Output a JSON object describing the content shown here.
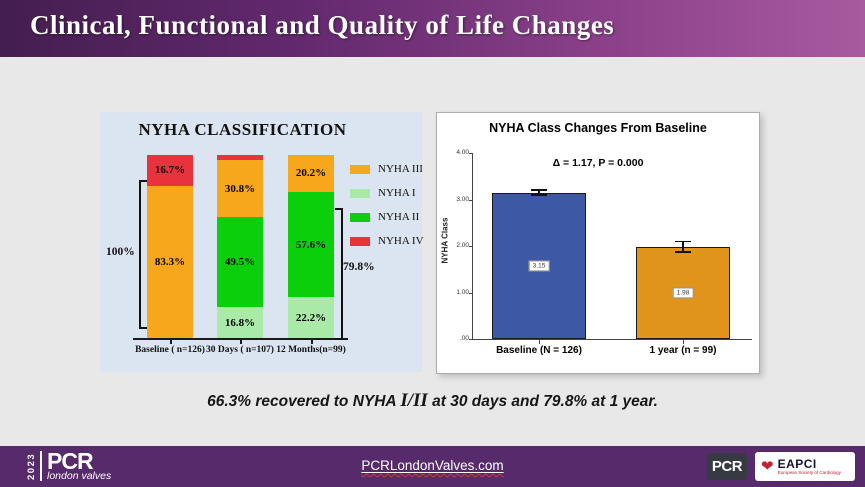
{
  "header": {
    "title": "Clinical, Functional and Quality of Life Changes"
  },
  "chart_data": [
    {
      "type": "bar",
      "variant": "stacked-percent",
      "title": "NYHA CLASSIFICATION",
      "categories": [
        "Baseline ( n=126)",
        "30 Days ( n=107)",
        "12 Months(n=99)"
      ],
      "series": [
        {
          "name": "NYHA I",
          "color": "#a9eaa9",
          "values": [
            0,
            16.8,
            22.2
          ]
        },
        {
          "name": "NYHA II",
          "color": "#0bcf0b",
          "values": [
            0,
            49.5,
            57.6
          ]
        },
        {
          "name": "NYHA III",
          "color": "#f7a71c",
          "values": [
            83.3,
            30.8,
            20.2
          ]
        },
        {
          "name": "NYHA IV",
          "color": "#e8333f",
          "values": [
            16.7,
            2.9,
            0
          ]
        }
      ],
      "legend": [
        {
          "label": "NYHA III",
          "color": "#f7a71c"
        },
        {
          "label": "NYHA I",
          "color": "#a9eaa9"
        },
        {
          "label": "NYHA II",
          "color": "#0bcf0b"
        },
        {
          "label": "NYHA IV",
          "color": "#e8333f"
        }
      ],
      "brackets": {
        "left": "100%",
        "right": "79.8%"
      },
      "ylim": [
        0,
        100
      ],
      "grid": false,
      "legend_position": "right"
    },
    {
      "type": "bar",
      "title": "NYHA Class Changes From Baseline",
      "annotation": "Δ = 1.17, P = 0.000",
      "ylabel": "NYHA Class",
      "categories": [
        "Baseline (N = 126)",
        "1 year (n = 99)"
      ],
      "values": [
        3.15,
        1.98
      ],
      "errors": [
        0.07,
        0.13
      ],
      "value_labels": [
        "3.15",
        "1.98"
      ],
      "bar_colors": [
        "#3d59a6",
        "#e0941c"
      ],
      "yticks": [
        "4.00",
        "3.00",
        "2.00",
        "1.00",
        ".00"
      ],
      "ylim": [
        0,
        4
      ],
      "grid": false,
      "legend_position": "none"
    }
  ],
  "caption": {
    "part1": "66.3% recovered to NYHA ",
    "roman": "I/II",
    "part2": " at 30 days and 79.8% at 1 year."
  },
  "footer": {
    "year": "2023",
    "brand": "PCR",
    "brand_sub": "london valves",
    "link": "PCRLondonValves.com",
    "pcr_badge": "PCR",
    "eapci_name": "EAPCI",
    "eapci_sub": "European Society of Cardiology"
  }
}
